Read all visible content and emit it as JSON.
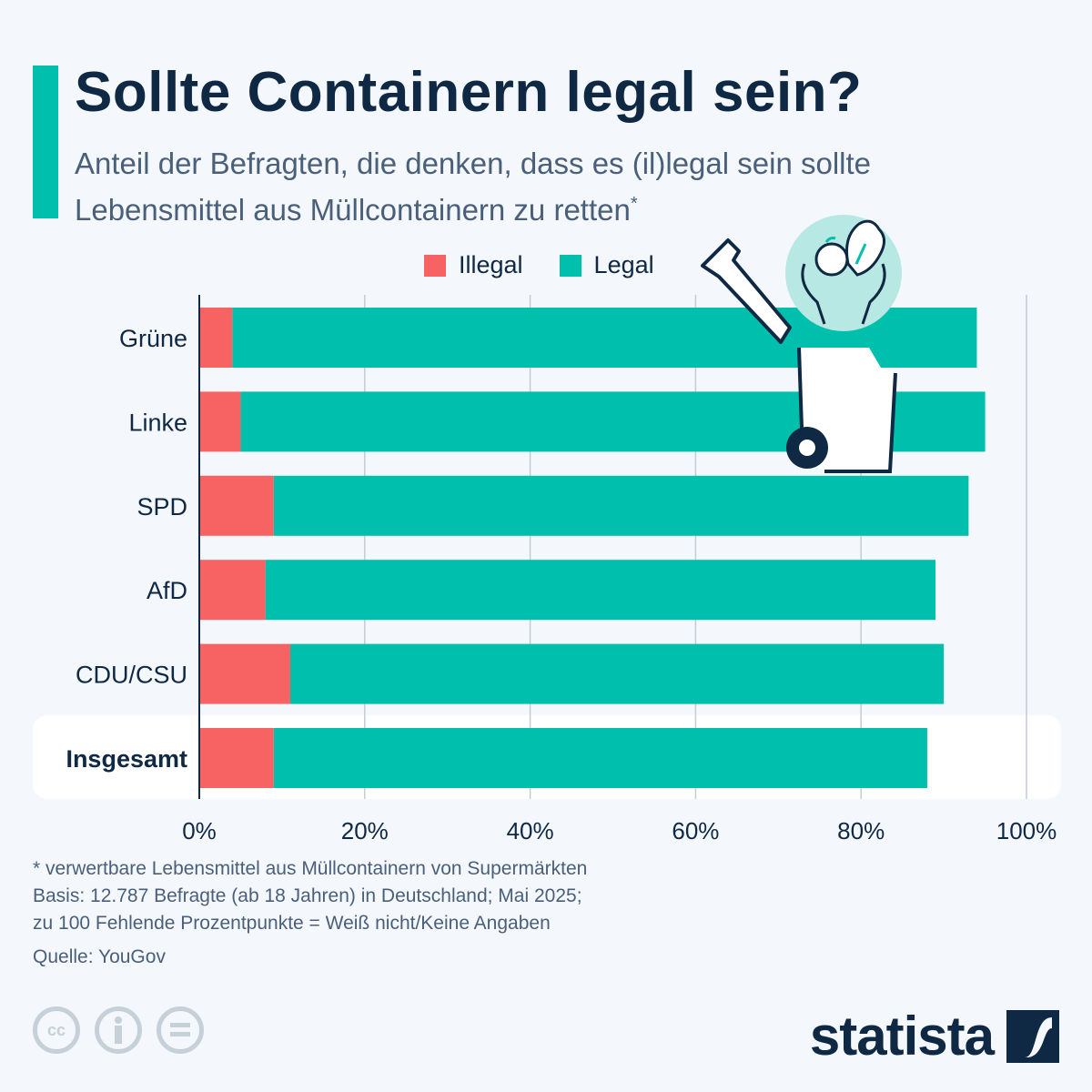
{
  "header": {
    "title": "Sollte Containern legal sein?",
    "subtitle_line1": "Anteil der Befragten, die denken, dass es (il)legal sein sollte",
    "subtitle_line2": "Lebensmittel aus Müllcontainern zu retten",
    "subtitle_mark": "*"
  },
  "colors": {
    "illegal": "#f76363",
    "legal": "#00bfad",
    "accent": "#00bfad",
    "text": "#0f2843"
  },
  "chart_data": {
    "type": "bar",
    "orientation": "horizontal",
    "stacked": true,
    "title": "Sollte Containern legal sein?",
    "xlabel": "",
    "ylabel": "",
    "xlim": [
      0,
      100
    ],
    "x_ticks": [
      "0%",
      "20%",
      "40%",
      "60%",
      "80%",
      "100%"
    ],
    "x_tick_values": [
      0,
      20,
      40,
      60,
      80,
      100
    ],
    "grid": true,
    "legend_position": "top",
    "categories": [
      "Grüne",
      "Linke",
      "SPD",
      "AfD",
      "CDU/CSU",
      "Insgesamt"
    ],
    "highlighted_category": "Insgesamt",
    "series": [
      {
        "name": "Illegal",
        "values": [
          4,
          5,
          9,
          8,
          11,
          9
        ]
      },
      {
        "name": "Legal",
        "values": [
          90,
          90,
          84,
          81,
          79,
          79
        ]
      }
    ]
  },
  "legend": [
    {
      "label": "Illegal",
      "color": "#f76363"
    },
    {
      "label": "Legal",
      "color": "#00bfad"
    }
  ],
  "footer": {
    "note1": "* verwertbare Lebensmittel aus Müllcontainern von Supermärkten",
    "note2": "Basis: 12.787 Befragte (ab 18 Jahren) in Deutschland; Mai 2025;",
    "note3": "zu 100 Fehlende Prozentpunkte = Weiß nicht/Keine Angaben",
    "source": "Quelle: YouGov",
    "brand": "statista",
    "license_icons": [
      "cc-icon",
      "attribution-icon",
      "no-derivatives-icon"
    ]
  }
}
